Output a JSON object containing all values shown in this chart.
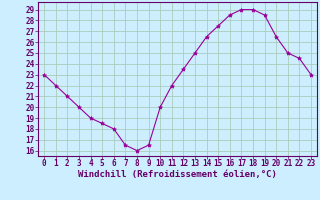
{
  "x": [
    0,
    1,
    2,
    3,
    4,
    5,
    6,
    7,
    8,
    9,
    10,
    11,
    12,
    13,
    14,
    15,
    16,
    17,
    18,
    19,
    20,
    21,
    22,
    23
  ],
  "y": [
    23,
    22,
    21,
    20,
    19,
    18.5,
    18,
    16.5,
    16,
    16.5,
    20,
    22,
    23.5,
    25,
    26.5,
    27.5,
    28.5,
    29,
    29,
    28.5,
    26.5,
    25,
    24.5,
    23
  ],
  "line_color": "#990099",
  "marker": "*",
  "marker_size": 3,
  "bg_color": "#cceeff",
  "grid_color": "#aaccbb",
  "xlabel": "Windchill (Refroidissement éolien,°C)",
  "xlabel_fontsize": 6.5,
  "ylabel_ticks": [
    16,
    17,
    18,
    19,
    20,
    21,
    22,
    23,
    24,
    25,
    26,
    27,
    28,
    29
  ],
  "xtick_labels": [
    "0",
    "1",
    "2",
    "3",
    "4",
    "5",
    "6",
    "7",
    "8",
    "9",
    "10",
    "11",
    "12",
    "13",
    "14",
    "15",
    "16",
    "17",
    "18",
    "19",
    "20",
    "21",
    "22",
    "23"
  ],
  "xlim": [
    -0.5,
    23.5
  ],
  "ylim": [
    15.5,
    29.7
  ],
  "tick_fontsize": 5.5,
  "label_color": "#660066",
  "spine_color": "#660066"
}
